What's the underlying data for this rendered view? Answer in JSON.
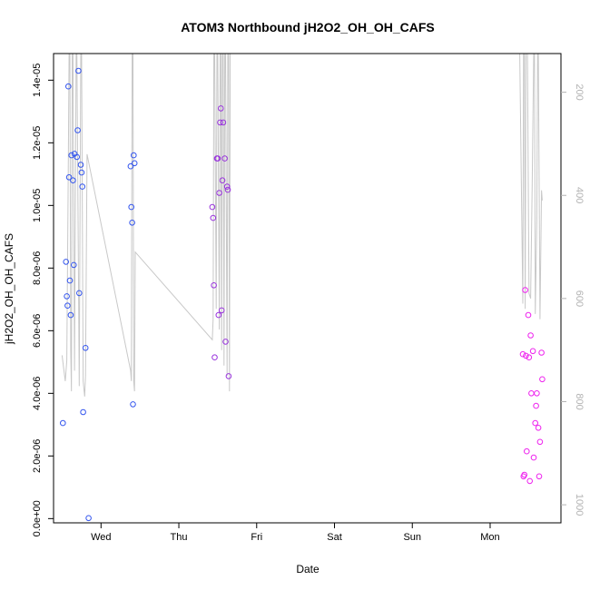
{
  "chart_data": {
    "type": "scatter",
    "title": "ATOM3 Northbound jH2O2_OH_OH_CAFS",
    "xlabel": "Date",
    "ylabel": "jH2O2_OH_OH_CAFS",
    "x_tick_labels": [
      "Wed",
      "Thu",
      "Fri",
      "Sat",
      "Sun",
      "Mon"
    ],
    "x_tick_days": [
      1,
      2,
      3,
      4,
      5,
      6
    ],
    "xlim": [
      0.39,
      6.91
    ],
    "ylim": [
      -1.35e-07,
      1.485e-05
    ],
    "y_ticks": [
      0,
      2e-06,
      4e-06,
      6e-06,
      8e-06,
      1e-05,
      1.2e-05,
      1.4e-05
    ],
    "y_tick_labels": [
      "0.0e+00",
      "2.0e-06",
      "4.0e-06",
      "6.0e-06",
      "8.0e-06",
      "1.0e-05",
      "1.2e-05",
      "1.4e-05"
    ],
    "y2_ticks": [
      200,
      400,
      600,
      800,
      1000
    ],
    "y2_tick_labels": [
      "200",
      "400",
      "600",
      "800",
      "1000"
    ],
    "y2lim": [
      1035,
      125
    ],
    "series": [
      {
        "color": "#3355ee",
        "points": [
          [
            0.51,
            3.05e-06
          ],
          [
            0.55,
            8.2e-06
          ],
          [
            0.56,
            7.1e-06
          ],
          [
            0.57,
            6.8e-06
          ],
          [
            0.58,
            1.38e-05
          ],
          [
            0.59,
            1.09e-05
          ],
          [
            0.6,
            7.6e-06
          ],
          [
            0.61,
            6.5e-06
          ],
          [
            0.62,
            1.16e-05
          ],
          [
            0.64,
            1.08e-05
          ],
          [
            0.65,
            8.1e-06
          ],
          [
            0.66,
            1.165e-05
          ],
          [
            0.69,
            1.155e-05
          ],
          [
            0.7,
            1.24e-05
          ],
          [
            0.71,
            1.43e-05
          ],
          [
            0.72,
            7.2e-06
          ],
          [
            0.74,
            1.13e-05
          ],
          [
            0.75,
            1.105e-05
          ],
          [
            0.76,
            1.06e-05
          ],
          [
            0.77,
            3.4e-06
          ],
          [
            0.8,
            5.45e-06
          ],
          [
            0.84,
            1.5e-08
          ],
          [
            1.38,
            1.125e-05
          ],
          [
            1.39,
            9.95e-06
          ],
          [
            1.4,
            9.45e-06
          ],
          [
            1.41,
            3.65e-06
          ],
          [
            1.42,
            1.16e-05
          ],
          [
            1.43,
            1.135e-05
          ]
        ]
      },
      {
        "color": "#9933dd",
        "points": [
          [
            2.43,
            9.95e-06
          ],
          [
            2.44,
            9.6e-06
          ],
          [
            2.45,
            7.45e-06
          ],
          [
            2.46,
            5.15e-06
          ],
          [
            2.49,
            1.15e-05
          ],
          [
            2.5,
            1.15e-05
          ],
          [
            2.51,
            6.5e-06
          ],
          [
            2.52,
            1.04e-05
          ],
          [
            2.53,
            1.265e-05
          ],
          [
            2.54,
            1.31e-05
          ],
          [
            2.55,
            6.65e-06
          ],
          [
            2.56,
            1.08e-05
          ],
          [
            2.57,
            1.265e-05
          ],
          [
            2.59,
            1.15e-05
          ],
          [
            2.6,
            5.65e-06
          ],
          [
            2.62,
            1.06e-05
          ],
          [
            2.63,
            1.05e-05
          ],
          [
            2.64,
            4.55e-06
          ]
        ]
      },
      {
        "color": "#ee22ee",
        "points": [
          [
            6.42,
            5.25e-06
          ],
          [
            6.43,
            1.35e-06
          ],
          [
            6.44,
            1.4e-06
          ],
          [
            6.45,
            7.3e-06
          ],
          [
            6.46,
            5.2e-06
          ],
          [
            6.47,
            2.15e-06
          ],
          [
            6.49,
            6.5e-06
          ],
          [
            6.5,
            5.15e-06
          ],
          [
            6.51,
            1.2e-06
          ],
          [
            6.52,
            5.85e-06
          ],
          [
            6.53,
            4e-06
          ],
          [
            6.55,
            5.35e-06
          ],
          [
            6.56,
            1.95e-06
          ],
          [
            6.58,
            3.05e-06
          ],
          [
            6.59,
            3.6e-06
          ],
          [
            6.6,
            4e-06
          ],
          [
            6.62,
            2.9e-06
          ],
          [
            6.63,
            1.35e-06
          ],
          [
            6.64,
            2.45e-06
          ],
          [
            6.66,
            5.3e-06
          ],
          [
            6.67,
            4.45e-06
          ]
        ]
      }
    ],
    "altitude_line": {
      "color": "#c8c8c8",
      "segments": [
        [
          [
            0.5,
            710
          ],
          [
            0.52,
            735
          ],
          [
            0.54,
            760
          ],
          [
            0.56,
            720
          ],
          [
            0.58,
            330
          ],
          [
            0.59,
            125
          ],
          [
            0.6,
            125
          ],
          [
            0.61,
            700
          ],
          [
            0.62,
            780
          ],
          [
            0.63,
            125
          ],
          [
            0.64,
            125
          ],
          [
            0.66,
            740
          ],
          [
            0.68,
            125
          ],
          [
            0.69,
            125
          ],
          [
            0.72,
            770
          ],
          [
            0.74,
            125
          ],
          [
            0.75,
            125
          ],
          [
            0.77,
            760
          ],
          [
            0.79,
            790
          ],
          [
            0.8,
            750
          ],
          [
            0.82,
            320
          ],
          [
            1.38,
            740
          ],
          [
            1.39,
            760
          ],
          [
            1.4,
            125
          ],
          [
            1.41,
            125
          ],
          [
            1.42,
            760
          ],
          [
            1.43,
            780
          ],
          [
            1.44,
            510
          ],
          [
            2.43,
            680
          ],
          [
            2.44,
            640
          ],
          [
            2.45,
            125
          ],
          [
            2.46,
            125
          ],
          [
            2.48,
            620
          ],
          [
            2.49,
            125
          ],
          [
            2.5,
            125
          ],
          [
            2.52,
            660
          ],
          [
            2.53,
            125
          ],
          [
            2.54,
            125
          ],
          [
            2.55,
            700
          ],
          [
            2.56,
            125
          ],
          [
            2.57,
            125
          ],
          [
            2.58,
            730
          ],
          [
            2.59,
            125
          ],
          [
            2.6,
            125
          ],
          [
            2.62,
            750
          ],
          [
            2.63,
            125
          ],
          [
            2.64,
            125
          ],
          [
            2.65,
            780
          ],
          [
            2.66,
            125
          ],
          [
            2.67,
            125
          ],
          [
            3.36,
            125
          ]
        ],
        [
          [
            6.38,
            125
          ],
          [
            6.42,
            610
          ],
          [
            6.43,
            125
          ],
          [
            6.44,
            125
          ],
          [
            6.45,
            620
          ],
          [
            6.46,
            125
          ],
          [
            6.48,
            125
          ],
          [
            6.5,
            590
          ],
          [
            6.52,
            600
          ],
          [
            6.54,
            380
          ],
          [
            6.56,
            125
          ],
          [
            6.57,
            125
          ],
          [
            6.58,
            630
          ],
          [
            6.6,
            450
          ],
          [
            6.61,
            125
          ],
          [
            6.62,
            125
          ],
          [
            6.64,
            640
          ],
          [
            6.66,
            390
          ],
          [
            6.67,
            410
          ]
        ]
      ]
    }
  }
}
